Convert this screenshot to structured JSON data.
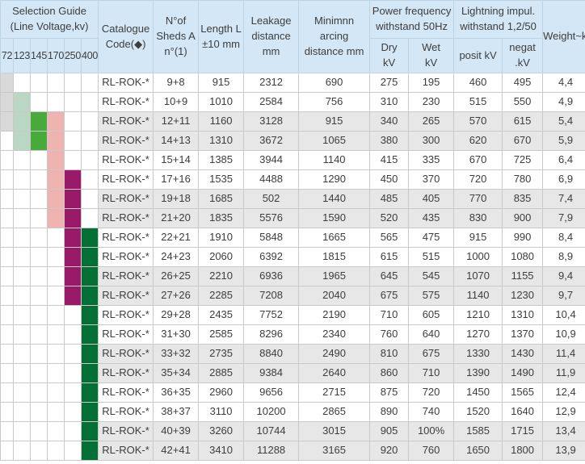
{
  "table": {
    "header": {
      "selection_guide": "Selection Guide\n(Line Voltage,kv)",
      "voltages": [
        "72",
        "123",
        "145",
        "170",
        "250",
        "400"
      ],
      "catalogue": "Catalogue\nCode(◆)",
      "sheds": "N°of\nSheds A\nn°(1)",
      "length": "Length L\n±10 mm",
      "leakage": "Leakage\ndistance mm",
      "arcing": "Minimnn arcing\ndistance mm",
      "power_freq": "Power frequency\nwithstand 50Hz",
      "dry": "Dry\nkV",
      "wet": "Wet\nkV",
      "lightning": "Lightning impul.\nwithstand 1,2/50",
      "posit": "posit kV",
      "negat": "negat\n.kV",
      "weight": "Weight~kg"
    },
    "rows": [
      {
        "sel": [
          "72"
        ],
        "code": "RL-ROK-*",
        "sheds": "9+8",
        "length": "915",
        "leakage": "2312",
        "arcing": "690",
        "dry": "275",
        "wet": "195",
        "posit": "460",
        "negat": "495",
        "weight": "4,4"
      },
      {
        "sel": [
          "72",
          "123"
        ],
        "code": "RL-ROK-*",
        "sheds": "10+9",
        "length": "1010",
        "leakage": "2584",
        "arcing": "756",
        "dry": "310",
        "wet": "230",
        "posit": "515",
        "negat": "550",
        "weight": "4,9"
      },
      {
        "sel": [
          "72",
          "123",
          "145",
          "170"
        ],
        "code": "RL-ROK-*",
        "sheds": "12+11",
        "length": "1160",
        "leakage": "3128",
        "arcing": "915",
        "dry": "340",
        "wet": "265",
        "posit": "570",
        "negat": "615",
        "weight": "5,4"
      },
      {
        "sel": [
          "123",
          "145",
          "170"
        ],
        "code": "RL-ROK-*",
        "sheds": "14+13",
        "length": "1310",
        "leakage": "3672",
        "arcing": "1065",
        "dry": "380",
        "wet": "300",
        "posit": "620",
        "negat": "670",
        "weight": "5,9"
      },
      {
        "sel": [
          "170"
        ],
        "code": "RL-ROK-*",
        "sheds": "15+14",
        "length": "1385",
        "leakage": "3944",
        "arcing": "1140",
        "dry": "415",
        "wet": "335",
        "posit": "670",
        "negat": "725",
        "weight": "6,4"
      },
      {
        "sel": [
          "170",
          "250"
        ],
        "code": "RL-ROK-*",
        "sheds": "17+16",
        "length": "1535",
        "leakage": "4488",
        "arcing": "1290",
        "dry": "450",
        "wet": "370",
        "posit": "720",
        "negat": "780",
        "weight": "6,9"
      },
      {
        "sel": [
          "170",
          "250"
        ],
        "code": "RL-ROK-*",
        "sheds": "19+18",
        "length": "1685",
        "leakage": "502",
        "arcing": "1440",
        "dry": "485",
        "wet": "405",
        "posit": "770",
        "negat": "835",
        "weight": "7,4"
      },
      {
        "sel": [
          "170",
          "250"
        ],
        "code": "RL-ROK-*",
        "sheds": "21+20",
        "length": "1835",
        "leakage": "5576",
        "arcing": "1590",
        "dry": "520",
        "wet": "435",
        "posit": "830",
        "negat": "900",
        "weight": "7,9"
      },
      {
        "sel": [
          "250",
          "400"
        ],
        "code": "RL-ROK-*",
        "sheds": "22+21",
        "length": "1910",
        "leakage": "5848",
        "arcing": "1665",
        "dry": "565",
        "wet": "475",
        "posit": "915",
        "negat": "990",
        "weight": "8,4"
      },
      {
        "sel": [
          "250",
          "400"
        ],
        "code": "RL-ROK-*",
        "sheds": "24+23",
        "length": "2060",
        "leakage": "6392",
        "arcing": "1815",
        "dry": "615",
        "wet": "515",
        "posit": "1000",
        "negat": "1080",
        "weight": "8,9"
      },
      {
        "sel": [
          "250",
          "400"
        ],
        "code": "RL-ROK-*",
        "sheds": "26+25",
        "length": "2210",
        "leakage": "6936",
        "arcing": "1965",
        "dry": "645",
        "wet": "545",
        "posit": "1070",
        "negat": "1155",
        "weight": "9,4"
      },
      {
        "sel": [
          "250",
          "400"
        ],
        "code": "RL-ROK-*",
        "sheds": "27+26",
        "length": "2285",
        "leakage": "7208",
        "arcing": "2040",
        "dry": "675",
        "wet": "575",
        "posit": "1140",
        "negat": "1230",
        "weight": "9,7"
      },
      {
        "sel": [
          "400"
        ],
        "code": "RL-ROK-*",
        "sheds": "29+28",
        "length": "2435",
        "leakage": "7752",
        "arcing": "2190",
        "dry": "710",
        "wet": "605",
        "posit": "1210",
        "negat": "1310",
        "weight": "10,4"
      },
      {
        "sel": [
          "400"
        ],
        "code": "RL-ROK-*",
        "sheds": "31+30",
        "length": "2585",
        "leakage": "8296",
        "arcing": "2340",
        "dry": "760",
        "wet": "640",
        "posit": "1270",
        "negat": "1370",
        "weight": "10,9"
      },
      {
        "sel": [
          "400"
        ],
        "code": "RL-ROK-*",
        "sheds": "33+32",
        "length": "2735",
        "leakage": "8840",
        "arcing": "2490",
        "dry": "810",
        "wet": "675",
        "posit": "1330",
        "negat": "1430",
        "weight": "11,4"
      },
      {
        "sel": [
          "400"
        ],
        "code": "RL-ROK-*",
        "sheds": "35+34",
        "length": "2885",
        "leakage": "9384",
        "arcing": "2640",
        "dry": "860",
        "wet": "710",
        "posit": "1390",
        "negat": "1490",
        "weight": "11,9"
      },
      {
        "sel": [
          "400"
        ],
        "code": "RL-ROK-*",
        "sheds": "36+35",
        "length": "2960",
        "leakage": "9656",
        "arcing": "2715",
        "dry": "875",
        "wet": "720",
        "posit": "1450",
        "negat": "1565",
        "weight": "12,4"
      },
      {
        "sel": [
          "400"
        ],
        "code": "RL-ROK-*",
        "sheds": "38+37",
        "length": "3110",
        "leakage": "10200",
        "arcing": "2865",
        "dry": "890",
        "wet": "740",
        "posit": "1520",
        "negat": "1640",
        "weight": "12,9"
      },
      {
        "sel": [
          "400"
        ],
        "code": "RL-ROK-*",
        "sheds": "40+39",
        "length": "3260",
        "leakage": "10744",
        "arcing": "3015",
        "dry": "905",
        "wet": "100%",
        "posit": "1585",
        "negat": "1715",
        "weight": "13,4"
      },
      {
        "sel": [
          "400"
        ],
        "code": "RL-ROK-*",
        "sheds": "42+41",
        "length": "3410",
        "leakage": "11288",
        "arcing": "3165",
        "dry": "920",
        "wet": "760",
        "posit": "1650",
        "negat": "1800",
        "weight": "13,9"
      }
    ]
  },
  "colors": {
    "header_bg": "#d4e7f6",
    "stripe_bg": "#e7e7e7",
    "selection": {
      "72": "#d9d9d9",
      "123": "#bad7c4",
      "145": "#47aa3a",
      "170": "#efb4af",
      "250": "#9a1a6a",
      "400": "#057036"
    }
  }
}
